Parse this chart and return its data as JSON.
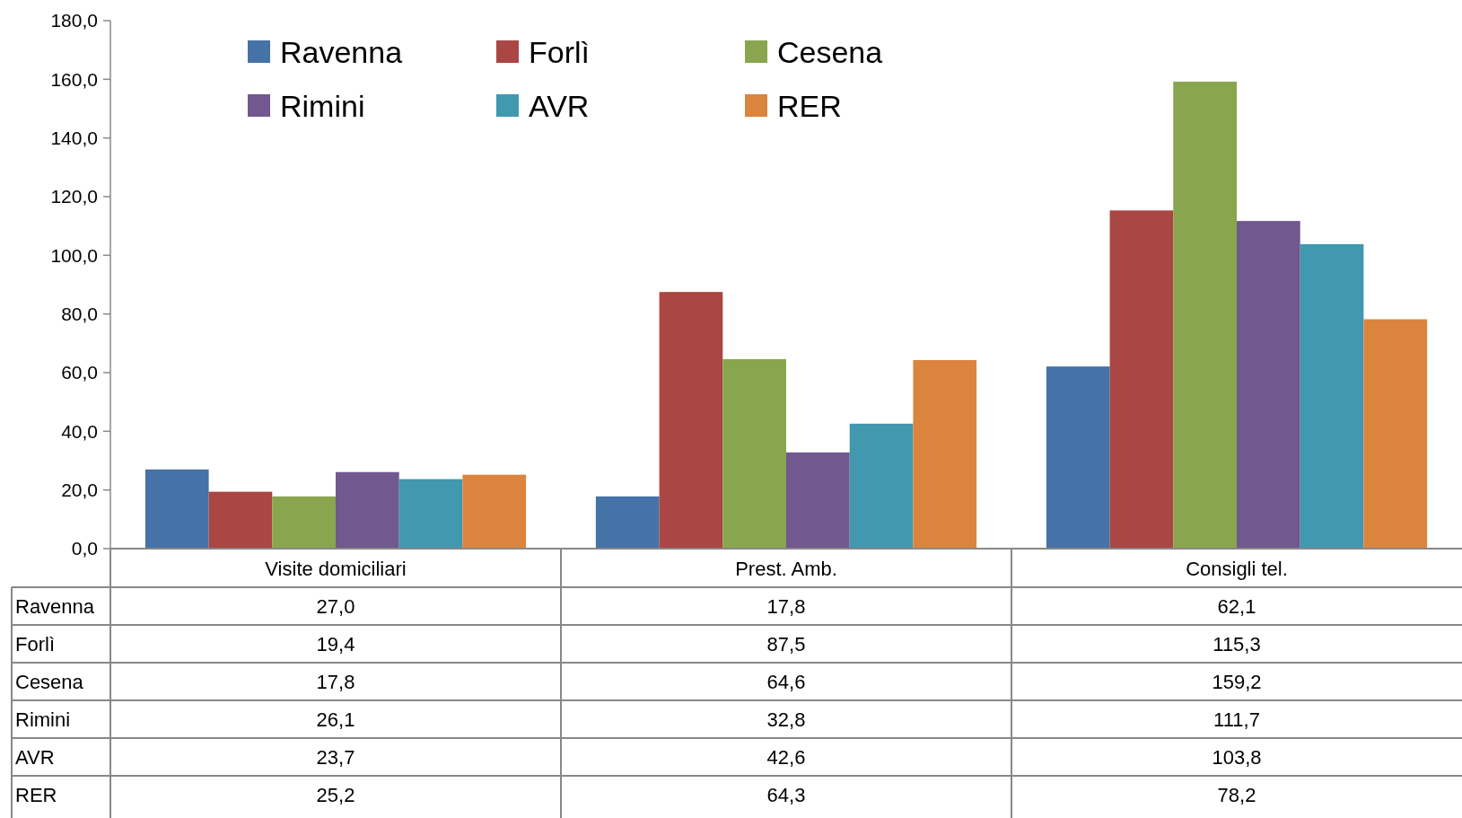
{
  "chart_data": {
    "type": "bar",
    "categories": [
      "Visite domiciliari",
      "Prest. Amb.",
      "Consigli tel."
    ],
    "series": [
      {
        "name": "Ravenna",
        "color": "#4572a7",
        "values": [
          27.0,
          17.8,
          62.1
        ],
        "value_labels": [
          "27,0",
          "17,8",
          "62,1"
        ]
      },
      {
        "name": "Forlì",
        "color": "#aa4643",
        "values": [
          19.4,
          87.5,
          115.3
        ],
        "value_labels": [
          "19,4",
          "87,5",
          "115,3"
        ]
      },
      {
        "name": "Cesena",
        "color": "#89a54e",
        "values": [
          17.8,
          64.6,
          159.2
        ],
        "value_labels": [
          "17,8",
          "64,6",
          "159,2"
        ]
      },
      {
        "name": "Rimini",
        "color": "#71588f",
        "values": [
          26.1,
          32.8,
          111.7
        ],
        "value_labels": [
          "26,1",
          "32,8",
          "111,7"
        ]
      },
      {
        "name": "AVR",
        "color": "#4198af",
        "values": [
          23.7,
          42.6,
          103.8
        ],
        "value_labels": [
          "23,7",
          "42,6",
          "103,8"
        ]
      },
      {
        "name": "RER",
        "color": "#db843d",
        "values": [
          25.2,
          64.3,
          78.2
        ],
        "value_labels": [
          "25,2",
          "64,3",
          "78,2"
        ]
      }
    ],
    "ylim": [
      0,
      180
    ],
    "yticks": [
      {
        "value": 0,
        "label": "0,0"
      },
      {
        "value": 20,
        "label": "20,0"
      },
      {
        "value": 40,
        "label": "40,0"
      },
      {
        "value": 60,
        "label": "60,0"
      },
      {
        "value": 80,
        "label": "80,0"
      },
      {
        "value": 100,
        "label": "100,0"
      },
      {
        "value": 120,
        "label": "120,0"
      },
      {
        "value": 140,
        "label": "140,0"
      },
      {
        "value": 160,
        "label": "160,0"
      },
      {
        "value": 180,
        "label": "180,0"
      }
    ],
    "grid": false,
    "legend": "top left"
  }
}
